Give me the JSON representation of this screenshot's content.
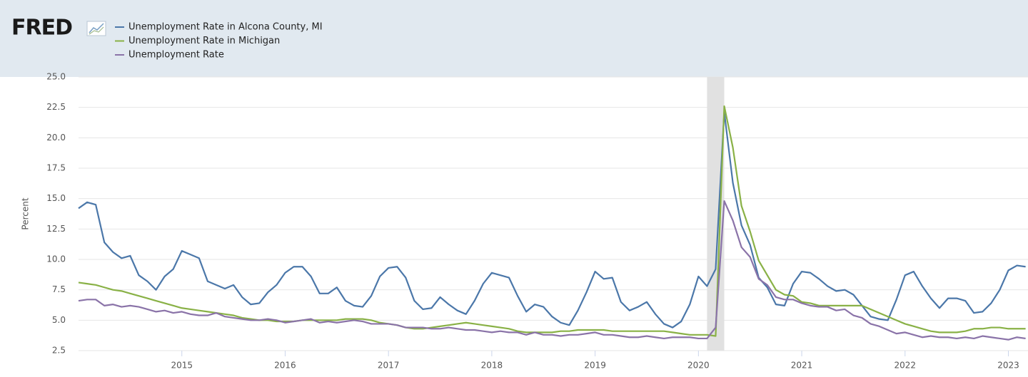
{
  "logo": "FRED",
  "chart_data": {
    "type": "line",
    "y_label": "Percent",
    "x": [
      "2014-01",
      "2014-02",
      "2014-03",
      "2014-04",
      "2014-05",
      "2014-06",
      "2014-07",
      "2014-08",
      "2014-09",
      "2014-10",
      "2014-11",
      "2014-12",
      "2015-01",
      "2015-02",
      "2015-03",
      "2015-04",
      "2015-05",
      "2015-06",
      "2015-07",
      "2015-08",
      "2015-09",
      "2015-10",
      "2015-11",
      "2015-12",
      "2016-01",
      "2016-02",
      "2016-03",
      "2016-04",
      "2016-05",
      "2016-06",
      "2016-07",
      "2016-08",
      "2016-09",
      "2016-10",
      "2016-11",
      "2016-12",
      "2017-01",
      "2017-02",
      "2017-03",
      "2017-04",
      "2017-05",
      "2017-06",
      "2017-07",
      "2017-08",
      "2017-09",
      "2017-10",
      "2017-11",
      "2017-12",
      "2018-01",
      "2018-02",
      "2018-03",
      "2018-04",
      "2018-05",
      "2018-06",
      "2018-07",
      "2018-08",
      "2018-09",
      "2018-10",
      "2018-11",
      "2018-12",
      "2019-01",
      "2019-02",
      "2019-03",
      "2019-04",
      "2019-05",
      "2019-06",
      "2019-07",
      "2019-08",
      "2019-09",
      "2019-10",
      "2019-11",
      "2019-12",
      "2020-01",
      "2020-02",
      "2020-03",
      "2020-04",
      "2020-05",
      "2020-06",
      "2020-07",
      "2020-08",
      "2020-09",
      "2020-10",
      "2020-11",
      "2020-12",
      "2021-01",
      "2021-02",
      "2021-03",
      "2021-04",
      "2021-05",
      "2021-06",
      "2021-07",
      "2021-08",
      "2021-09",
      "2021-10",
      "2021-11",
      "2021-12",
      "2022-01",
      "2022-02",
      "2022-03",
      "2022-04",
      "2022-05",
      "2022-06",
      "2022-07",
      "2022-08",
      "2022-09",
      "2022-10",
      "2022-11",
      "2022-12",
      "2023-01",
      "2023-02",
      "2023-03"
    ],
    "series": [
      {
        "name": "Unemployment Rate in Alcona County, MI",
        "color": "#4b77a9",
        "values": [
          14.2,
          14.7,
          14.5,
          11.4,
          10.6,
          10.1,
          10.3,
          8.7,
          8.2,
          7.5,
          8.6,
          9.2,
          10.7,
          10.4,
          10.1,
          8.2,
          7.9,
          7.6,
          7.9,
          6.9,
          6.3,
          6.4,
          7.3,
          7.9,
          8.9,
          9.4,
          9.4,
          8.6,
          7.2,
          7.2,
          7.7,
          6.6,
          6.2,
          6.1,
          7.0,
          8.6,
          9.3,
          9.4,
          8.5,
          6.6,
          5.9,
          6.0,
          6.9,
          6.3,
          5.8,
          5.5,
          6.6,
          8.0,
          8.9,
          8.7,
          8.5,
          7.0,
          5.7,
          6.3,
          6.1,
          5.3,
          4.8,
          4.6,
          5.8,
          7.3,
          9.0,
          8.4,
          8.5,
          6.5,
          5.8,
          6.1,
          6.5,
          5.5,
          4.7,
          4.4,
          4.9,
          6.3,
          8.6,
          7.8,
          9.2,
          22.1,
          16.3,
          12.8,
          11.2,
          8.5,
          7.7,
          6.3,
          6.2,
          8.0,
          9.0,
          8.9,
          8.4,
          7.8,
          7.4,
          7.5,
          7.1,
          6.2,
          5.3,
          5.1,
          5.0,
          6.7,
          8.7,
          9.0,
          7.8,
          6.8,
          6.0,
          6.8,
          6.8,
          6.6,
          5.6,
          5.7,
          6.4,
          7.5,
          9.1,
          9.5,
          9.4
        ]
      },
      {
        "name": "Unemployment Rate in Michigan",
        "color": "#89b146",
        "values": [
          8.1,
          8.0,
          7.9,
          7.7,
          7.5,
          7.4,
          7.2,
          7.0,
          6.8,
          6.6,
          6.4,
          6.2,
          6.0,
          5.9,
          5.8,
          5.7,
          5.6,
          5.5,
          5.4,
          5.2,
          5.1,
          5.0,
          5.0,
          4.9,
          4.9,
          4.9,
          5.0,
          5.0,
          5.0,
          5.0,
          5.0,
          5.1,
          5.1,
          5.1,
          5.0,
          4.8,
          4.7,
          4.6,
          4.4,
          4.3,
          4.3,
          4.4,
          4.5,
          4.6,
          4.7,
          4.8,
          4.7,
          4.6,
          4.5,
          4.4,
          4.3,
          4.1,
          4.0,
          4.0,
          4.0,
          4.0,
          4.1,
          4.1,
          4.2,
          4.2,
          4.2,
          4.2,
          4.1,
          4.1,
          4.1,
          4.1,
          4.1,
          4.1,
          4.1,
          4.0,
          3.9,
          3.8,
          3.8,
          3.8,
          3.7,
          22.6,
          19.2,
          14.4,
          12.3,
          9.9,
          8.7,
          7.5,
          7.1,
          7.0,
          6.5,
          6.4,
          6.2,
          6.2,
          6.2,
          6.2,
          6.2,
          6.2,
          5.9,
          5.6,
          5.3,
          5.0,
          4.7,
          4.5,
          4.3,
          4.1,
          4.0,
          4.0,
          4.0,
          4.1,
          4.3,
          4.3,
          4.4,
          4.4,
          4.3,
          4.3,
          4.3
        ]
      },
      {
        "name": "Unemployment Rate",
        "color": "#8a73a8",
        "values": [
          6.6,
          6.7,
          6.7,
          6.2,
          6.3,
          6.1,
          6.2,
          6.1,
          5.9,
          5.7,
          5.8,
          5.6,
          5.7,
          5.5,
          5.4,
          5.4,
          5.6,
          5.3,
          5.2,
          5.1,
          5.0,
          5.0,
          5.1,
          5.0,
          4.8,
          4.9,
          5.0,
          5.1,
          4.8,
          4.9,
          4.8,
          4.9,
          5.0,
          4.9,
          4.7,
          4.7,
          4.7,
          4.6,
          4.4,
          4.4,
          4.4,
          4.3,
          4.3,
          4.4,
          4.3,
          4.2,
          4.2,
          4.1,
          4.0,
          4.1,
          4.0,
          4.0,
          3.8,
          4.0,
          3.8,
          3.8,
          3.7,
          3.8,
          3.8,
          3.9,
          4.0,
          3.8,
          3.8,
          3.7,
          3.6,
          3.6,
          3.7,
          3.6,
          3.5,
          3.6,
          3.6,
          3.6,
          3.5,
          3.5,
          4.4,
          14.8,
          13.2,
          11.0,
          10.2,
          8.4,
          7.9,
          6.9,
          6.7,
          6.7,
          6.4,
          6.2,
          6.1,
          6.1,
          5.8,
          5.9,
          5.4,
          5.2,
          4.7,
          4.5,
          4.2,
          3.9,
          4.0,
          3.8,
          3.6,
          3.7,
          3.6,
          3.6,
          3.5,
          3.6,
          3.5,
          3.7,
          3.6,
          3.5,
          3.4,
          3.6,
          3.5
        ]
      }
    ],
    "recessions": [
      [
        "2020-02",
        "2020-04"
      ]
    ],
    "xlim": [
      2014,
      2023.19
    ],
    "xticks": [
      2015,
      2016,
      2017,
      2018,
      2019,
      2020,
      2021,
      2022,
      2023
    ],
    "ylim": [
      2.5,
      25
    ],
    "yticks": [
      2.5,
      {
        "value": 5,
        "label": "5.0"
      },
      7.5,
      {
        "value": 10,
        "label": "10.0"
      },
      12.5,
      {
        "value": 15,
        "label": "15.0"
      },
      17.5,
      {
        "value": 20,
        "label": "20.0"
      },
      22.5,
      {
        "value": 25,
        "label": "25.0"
      }
    ],
    "grid": true
  }
}
